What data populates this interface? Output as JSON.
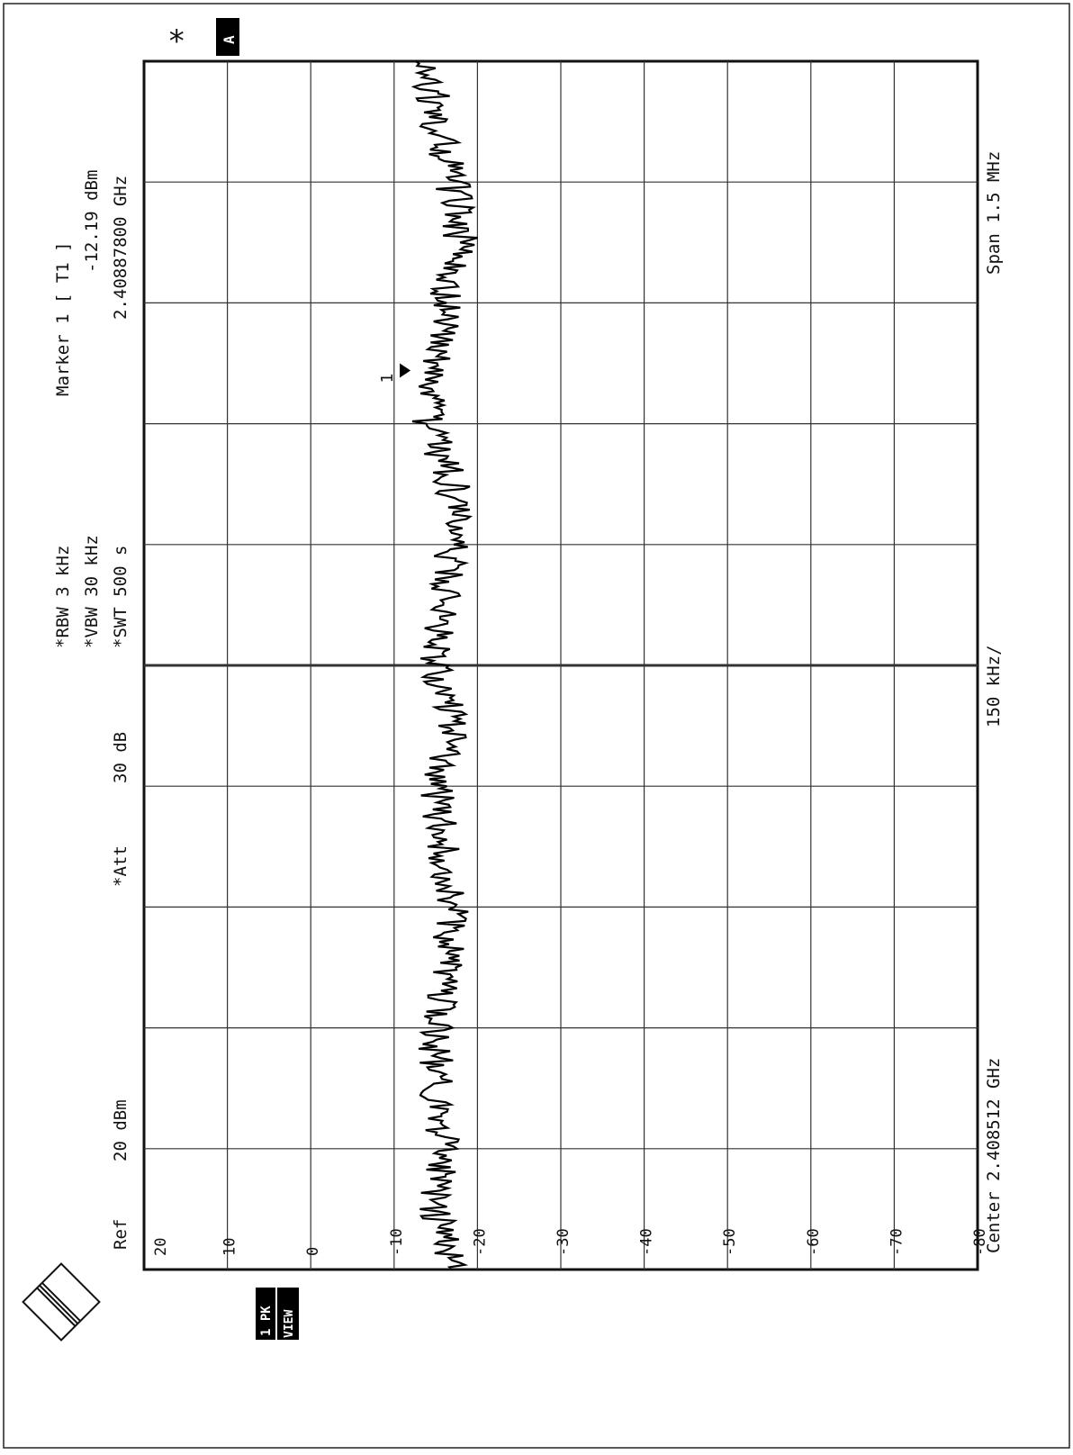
{
  "header": {
    "ref_label": "Ref",
    "ref_value": "20 dBm",
    "att_label": "*Att",
    "att_value": "30 dB",
    "rbw": "*RBW 3 kHz",
    "vbw": "*VBW 30 kHz",
    "swt": "*SWT 500 s",
    "marker_title": "Marker 1 [ T1 ]",
    "marker_level": "-12.19 dBm",
    "marker_freq": "2.40887800 GHz"
  },
  "footer": {
    "center": "Center 2.408512 GHz",
    "div": "150 kHz/",
    "span": "Span 1.5 MHz"
  },
  "badges": {
    "trace_a": "A",
    "trace_mode": "1 PK",
    "view": "VIEW",
    "asterisk": "*",
    "logo_text": "R&S"
  },
  "chart_data": {
    "type": "line",
    "title": "",
    "xlabel": "",
    "ylabel": "",
    "x_unit": "GHz",
    "y_unit": "dBm",
    "center_ghz": 2.408512,
    "span_mhz": 1.5,
    "xlim": [
      2.407762,
      2.409262
    ],
    "ylim": [
      -80,
      20
    ],
    "yticks": [
      "20",
      "10",
      "0",
      "-10",
      "-20",
      "-30",
      "-40",
      "-50",
      "-60",
      "-70",
      "-80"
    ],
    "grid": true,
    "marker": {
      "label": "1",
      "x": 2.408878,
      "y": -12.19
    },
    "series": [
      {
        "x": [
          2.407762,
          2.407837,
          2.407912,
          2.407987,
          2.408062,
          2.408137,
          2.408212,
          2.408287,
          2.408362,
          2.408437,
          2.408512,
          2.408587,
          2.408662,
          2.408737,
          2.408812,
          2.408887,
          2.408962,
          2.409037,
          2.409112,
          2.409187,
          2.409262
        ],
        "values": [
          -17,
          -15,
          -16,
          -15,
          -15,
          -16,
          -17,
          -16,
          -15,
          -17,
          -15,
          -16,
          -17,
          -17,
          -14,
          -15,
          -16,
          -18,
          -17,
          -15,
          -14
        ]
      }
    ]
  }
}
